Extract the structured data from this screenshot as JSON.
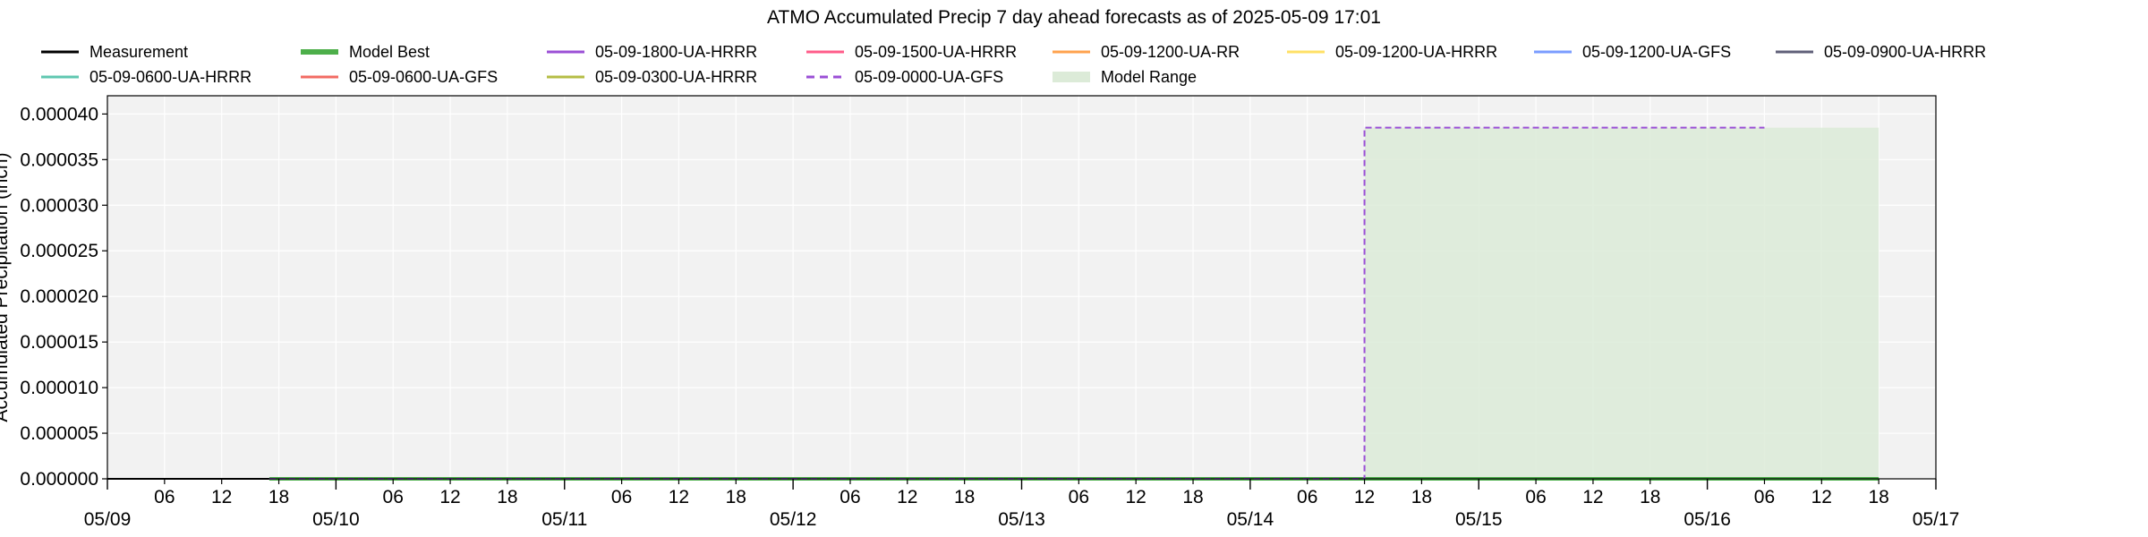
{
  "chart_data": {
    "type": "line",
    "title": "ATMO Accumulated Precip 7 day ahead forecasts as of 2025-05-09 17:01",
    "xlabel": "",
    "ylabel": "Accumulated Precipitation (inch)",
    "x_range": [
      "2025-05-09 00:00",
      "2025-05-17 00:00"
    ],
    "ylim": [
      0,
      4.2e-05
    ],
    "y_ticks": [
      "0.000000",
      "0.000005",
      "0.000010",
      "0.000015",
      "0.000020",
      "0.000025",
      "0.000030",
      "0.000035",
      "0.000040"
    ],
    "y_tick_values": [
      0,
      5e-06,
      1e-05,
      1.5e-05,
      2e-05,
      2.5e-05,
      3e-05,
      3.5e-05,
      4e-05
    ],
    "x_major_ticks": [
      {
        "t": "2025-05-09 00:00",
        "label": "05/09"
      },
      {
        "t": "2025-05-10 00:00",
        "label": "05/10"
      },
      {
        "t": "2025-05-11 00:00",
        "label": "05/11"
      },
      {
        "t": "2025-05-12 00:00",
        "label": "05/12"
      },
      {
        "t": "2025-05-13 00:00",
        "label": "05/13"
      },
      {
        "t": "2025-05-14 00:00",
        "label": "05/14"
      },
      {
        "t": "2025-05-15 00:00",
        "label": "05/15"
      },
      {
        "t": "2025-05-16 00:00",
        "label": "05/16"
      },
      {
        "t": "2025-05-17 00:00",
        "label": "05/17"
      }
    ],
    "x_minor_labels": [
      "06",
      "12",
      "18"
    ],
    "grid": true,
    "legend_position": "top",
    "background": "#f2f2f2",
    "legend": [
      {
        "name": "Measurement",
        "color": "#000000",
        "style": "solid",
        "width": 3
      },
      {
        "name": "Model Best",
        "color": "#4daf4a",
        "style": "solid",
        "width": 6
      },
      {
        "name": "05-09-1800-UA-HRRR",
        "color": "#9b4fd6",
        "style": "solid",
        "width": 3
      },
      {
        "name": "05-09-1500-UA-HRRR",
        "color": "#ff5c8a",
        "style": "solid",
        "width": 3
      },
      {
        "name": "05-09-1200-UA-RR",
        "color": "#ffa24d",
        "style": "solid",
        "width": 3
      },
      {
        "name": "05-09-1200-UA-HRRR",
        "color": "#ffe066",
        "style": "solid",
        "width": 3
      },
      {
        "name": "05-09-1200-UA-GFS",
        "color": "#7a9cff",
        "style": "solid",
        "width": 3
      },
      {
        "name": "05-09-0900-UA-HRRR",
        "color": "#5f5f78",
        "style": "solid",
        "width": 3
      },
      {
        "name": "05-09-0600-UA-HRRR",
        "color": "#5fc7b0",
        "style": "solid",
        "width": 3
      },
      {
        "name": "05-09-0600-UA-GFS",
        "color": "#f26b63",
        "style": "solid",
        "width": 3
      },
      {
        "name": "05-09-0300-UA-HRRR",
        "color": "#b5bd45",
        "style": "solid",
        "width": 3
      },
      {
        "name": "05-09-0000-UA-GFS",
        "color": "#9b4fd6",
        "style": "dashed",
        "width": 3
      },
      {
        "name": "Model Range",
        "color": "#dcebd8",
        "style": "patch",
        "width": 0
      }
    ],
    "series": [
      {
        "name": "Measurement",
        "color": "#000000",
        "dash": false,
        "width": 2,
        "points": [
          [
            "2025-05-09 00:00",
            0
          ],
          [
            "2025-05-09 17:00",
            0
          ]
        ]
      },
      {
        "name": "Model Best",
        "color": "#4daf4a",
        "dash": false,
        "width": 4,
        "points": [
          [
            "2025-05-09 17:00",
            0
          ],
          [
            "2025-05-16 18:00",
            0
          ]
        ]
      },
      {
        "name": "05-09-0000-UA-GFS",
        "color": "#9b4fd6",
        "dash": true,
        "width": 2,
        "points": [
          [
            "2025-05-09 17:00",
            0
          ],
          [
            "2025-05-14 12:00",
            0
          ],
          [
            "2025-05-14 12:00",
            3.85e-05
          ],
          [
            "2025-05-16 06:00",
            3.85e-05
          ]
        ]
      }
    ],
    "model_range": {
      "color": "#dcebd8",
      "points": [
        [
          "2025-05-14 12:00",
          3.85e-05
        ],
        [
          "2025-05-16 18:00",
          3.85e-05
        ]
      ]
    }
  }
}
